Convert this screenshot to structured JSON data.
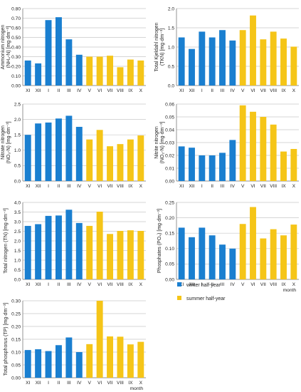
{
  "legend": {
    "winter": "winter half-year",
    "summer": "summer half-year"
  },
  "colors": {
    "winter": "#1a7fd0",
    "summer": "#f5c518",
    "grid": "#c8c8c8",
    "axis": "#7a7a7a"
  },
  "chart_data": [
    {
      "type": "bar",
      "ylabel": "Ammonium nitrogen (NH₄-N) [mg·dm⁻³]",
      "categories": [
        "XI",
        "XII",
        "I",
        "II",
        "III",
        "IV",
        "V",
        "VI",
        "VII",
        "VIII",
        "IX",
        "X"
      ],
      "values": [
        0.26,
        0.23,
        0.68,
        0.71,
        0.48,
        0.32,
        0.3,
        0.3,
        0.31,
        0.19,
        0.27,
        0.26
      ],
      "ylim": [
        0,
        0.8
      ],
      "yticks": [
        0,
        0.1,
        0.2,
        0.3,
        0.4,
        0.5,
        0.6,
        0.7,
        0.8
      ],
      "tick_labels": [
        "0.00",
        "0.10",
        "0.20",
        "0.30",
        "0.40",
        "0.50",
        "0.60",
        "0.70",
        "0.80"
      ],
      "xlabel": "",
      "grid": true
    },
    {
      "type": "bar",
      "ylabel": "Total Kjeldahl nitrogen (TKN) [mg·dm⁻³]",
      "categories": [
        "XI",
        "XII",
        "I",
        "II",
        "III",
        "IV",
        "V",
        "VI",
        "VII",
        "VIII",
        "IX",
        "X"
      ],
      "values": [
        1.25,
        0.95,
        1.4,
        1.25,
        1.44,
        1.17,
        1.44,
        1.82,
        1.2,
        1.4,
        1.22,
        1.01
      ],
      "ylim": [
        0,
        2.0
      ],
      "yticks": [
        0,
        0.5,
        1.0,
        1.5,
        2.0
      ],
      "tick_labels": [
        "0.0",
        "0.5",
        "1.0",
        "1.5",
        "2.0"
      ],
      "xlabel": "",
      "grid": true
    },
    {
      "type": "bar",
      "ylabel": "Nitrate nitrogen (NO₃-N) [mg·dm⁻³]",
      "categories": [
        "XI",
        "XII",
        "I",
        "II",
        "III",
        "IV",
        "V",
        "VI",
        "VII",
        "VIII",
        "IX",
        "X"
      ],
      "values": [
        1.5,
        1.87,
        1.9,
        2.03,
        2.12,
        1.76,
        1.35,
        1.66,
        1.13,
        1.2,
        1.35,
        1.48
      ],
      "ylim": [
        0,
        2.5
      ],
      "yticks": [
        0,
        0.5,
        1.0,
        1.5,
        2.0,
        2.5
      ],
      "tick_labels": [
        "0.0",
        "0.5",
        "1.0",
        "1.5",
        "2.0",
        "2.5"
      ],
      "xlabel": "",
      "grid": true
    },
    {
      "type": "bar",
      "ylabel": "Nitrite nitrogen (NO₂-N) [mg·dm⁻³]",
      "categories": [
        "XI",
        "XII",
        "I",
        "II",
        "III",
        "IV",
        "V",
        "VI",
        "VII",
        "VIII",
        "IX",
        "X"
      ],
      "values": [
        0.027,
        0.026,
        0.02,
        0.02,
        0.022,
        0.032,
        0.059,
        0.054,
        0.05,
        0.044,
        0.023,
        0.025
      ],
      "ylim": [
        0,
        0.06
      ],
      "yticks": [
        0,
        0.01,
        0.02,
        0.03,
        0.04,
        0.05,
        0.06
      ],
      "tick_labels": [
        "0.00",
        "0.01",
        "0.02",
        "0.03",
        "0.04",
        "0.05",
        "0.06"
      ],
      "xlabel": "",
      "grid": true
    },
    {
      "type": "bar",
      "ylabel": "Total nitrogen (TN) [mg·dm⁻³]",
      "categories": [
        "XI",
        "XII",
        "I",
        "II",
        "III",
        "IV",
        "V",
        "VI",
        "VII",
        "VIII",
        "IX",
        "X"
      ],
      "values": [
        2.78,
        2.87,
        3.3,
        3.32,
        3.62,
        2.93,
        2.78,
        3.52,
        2.36,
        2.52,
        2.55,
        2.52
      ],
      "ylim": [
        0,
        4.0
      ],
      "yticks": [
        0,
        0.5,
        1.0,
        1.5,
        2.0,
        2.5,
        3.0,
        3.5,
        4.0
      ],
      "tick_labels": [
        "0.0",
        "0.5",
        "1.0",
        "1.5",
        "2.0",
        "2.5",
        "3.0",
        "3.5",
        "4.0"
      ],
      "xlabel": "",
      "grid": true
    },
    {
      "type": "bar",
      "ylabel": "Phosphates (PO₄) [mg·dm⁻³]",
      "categories": [
        "XI",
        "XII",
        "I",
        "II",
        "III",
        "IV",
        "V",
        "VI",
        "VII",
        "VIII",
        "IX",
        "X"
      ],
      "values": [
        0.168,
        0.137,
        0.168,
        0.143,
        0.113,
        0.1,
        0.18,
        0.235,
        0.133,
        0.163,
        0.143,
        0.178
      ],
      "ylim": [
        0,
        0.25
      ],
      "yticks": [
        0,
        0.05,
        0.1,
        0.15,
        0.2,
        0.25
      ],
      "tick_labels": [
        "0.00",
        "0.05",
        "0.10",
        "0.15",
        "0.20",
        "0.25"
      ],
      "xlabel": "month",
      "grid": true
    },
    {
      "type": "bar",
      "ylabel": "Total phosphorus (TP) [mg·dm⁻³]",
      "categories": [
        "XI",
        "XII",
        "I",
        "II",
        "III",
        "IV",
        "V",
        "VI",
        "VII",
        "VIII",
        "IX",
        "X"
      ],
      "values": [
        0.108,
        0.111,
        0.104,
        0.127,
        0.157,
        0.1,
        0.131,
        0.3,
        0.161,
        0.16,
        0.13,
        0.14
      ],
      "ylim": [
        0,
        0.3
      ],
      "yticks": [
        0,
        0.05,
        0.1,
        0.15,
        0.2,
        0.25,
        0.3
      ],
      "tick_labels": [
        "0.00",
        "0.05",
        "0.10",
        "0.15",
        "0.20",
        "0.25",
        "0.30"
      ],
      "xlabel": "month",
      "grid": true
    }
  ]
}
